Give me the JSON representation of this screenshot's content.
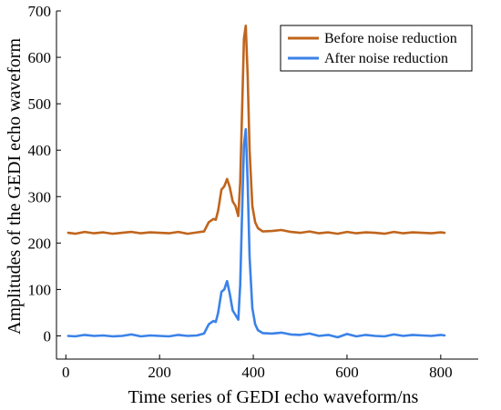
{
  "chart_data": {
    "type": "line",
    "title": "",
    "xlabel": "Time series of GEDI echo waveform/ns",
    "ylabel": "Amplitudes of the GEDI echo waveform",
    "xlim": [
      -20,
      880
    ],
    "ylim": [
      -50,
      700
    ],
    "xticks": [
      0,
      200,
      400,
      600,
      800
    ],
    "yticks": [
      0,
      100,
      200,
      300,
      400,
      500,
      600,
      700
    ],
    "grid": false,
    "legend": "top-right",
    "series": [
      {
        "name": "Before noise reduction",
        "color": "#c0651d",
        "x": [
          5,
          20,
          40,
          60,
          80,
          100,
          120,
          140,
          160,
          180,
          200,
          220,
          240,
          260,
          280,
          295,
          305,
          315,
          320,
          325,
          332,
          338,
          344,
          350,
          356,
          362,
          368,
          372,
          376,
          380,
          384,
          388,
          392,
          398,
          404,
          410,
          420,
          440,
          460,
          480,
          500,
          520,
          540,
          560,
          580,
          600,
          620,
          640,
          660,
          680,
          700,
          720,
          740,
          760,
          780,
          800,
          808
        ],
        "y": [
          222,
          220,
          224,
          221,
          223,
          220,
          222,
          224,
          221,
          223,
          222,
          221,
          224,
          220,
          223,
          225,
          245,
          252,
          250,
          270,
          315,
          322,
          338,
          320,
          290,
          280,
          258,
          330,
          480,
          640,
          668,
          560,
          400,
          280,
          245,
          232,
          225,
          226,
          228,
          224,
          222,
          225,
          221,
          223,
          220,
          224,
          221,
          223,
          222,
          220,
          224,
          221,
          223,
          222,
          221,
          223,
          222
        ]
      },
      {
        "name": "After noise reduction",
        "color": "#3b82e8",
        "x": [
          5,
          20,
          40,
          60,
          80,
          100,
          120,
          140,
          160,
          180,
          200,
          220,
          240,
          260,
          280,
          295,
          305,
          315,
          320,
          325,
          332,
          338,
          344,
          350,
          356,
          362,
          368,
          372,
          376,
          380,
          384,
          388,
          392,
          398,
          404,
          410,
          420,
          440,
          460,
          480,
          500,
          520,
          540,
          560,
          580,
          600,
          620,
          640,
          660,
          680,
          700,
          720,
          740,
          760,
          780,
          800,
          808
        ],
        "y": [
          0,
          -1,
          2,
          0,
          1,
          -1,
          0,
          3,
          -1,
          1,
          0,
          -1,
          2,
          0,
          1,
          5,
          25,
          32,
          30,
          50,
          95,
          100,
          118,
          90,
          55,
          45,
          35,
          110,
          260,
          410,
          445,
          330,
          170,
          60,
          25,
          12,
          6,
          5,
          7,
          3,
          2,
          5,
          0,
          2,
          -3,
          4,
          -1,
          2,
          0,
          -1,
          3,
          0,
          2,
          1,
          0,
          2,
          1
        ]
      }
    ]
  }
}
